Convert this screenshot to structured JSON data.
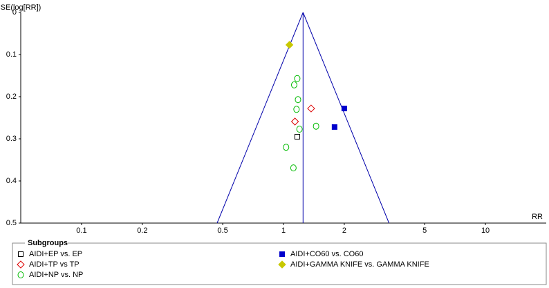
{
  "chart_data": {
    "type": "scatter",
    "xlabel": "RR",
    "ylabel": "SE(log[RR])",
    "xscale": "log",
    "y_inverted": true,
    "xlim": [
      0.05,
      20
    ],
    "ylim": [
      0,
      0.5
    ],
    "xticks": [
      0.1,
      0.2,
      0.5,
      1,
      2,
      5,
      10
    ],
    "yticks": [
      0,
      0.1,
      0.2,
      0.3,
      0.4,
      0.5
    ],
    "grid": false,
    "pooled_rr": 1.25,
    "line_color": "#0000aa",
    "legend_title": "Subgroups",
    "series": [
      {
        "name": "AIDI+EP vs. EP",
        "color": "#000000",
        "marker": "square-open",
        "x": [
          1.17
        ],
        "y": [
          0.295
        ]
      },
      {
        "name": "AIDI+TP vs TP",
        "color": "#dd0000",
        "marker": "diamond-open",
        "x": [
          1.37,
          1.14
        ],
        "y": [
          0.228,
          0.259
        ]
      },
      {
        "name": "AIDI+NP vs. NP",
        "color": "#00bb00",
        "marker": "circle-open",
        "x": [
          1.17,
          1.13,
          1.18,
          1.16,
          1.45,
          1.2,
          1.03,
          1.12
        ],
        "y": [
          0.157,
          0.172,
          0.207,
          0.23,
          0.27,
          0.277,
          0.32,
          0.369
        ]
      },
      {
        "name": "AIDI+CO60 vs. CO60",
        "color": "#0000cc",
        "marker": "square-filled",
        "x": [
          2.0,
          1.79
        ],
        "y": [
          0.228,
          0.272
        ]
      },
      {
        "name": "AIDI+GAMMA KNIFE vs. GAMMA KNIFE",
        "color": "#c8c800",
        "marker": "diamond-filled",
        "x": [
          1.07
        ],
        "y": [
          0.077
        ]
      }
    ]
  }
}
